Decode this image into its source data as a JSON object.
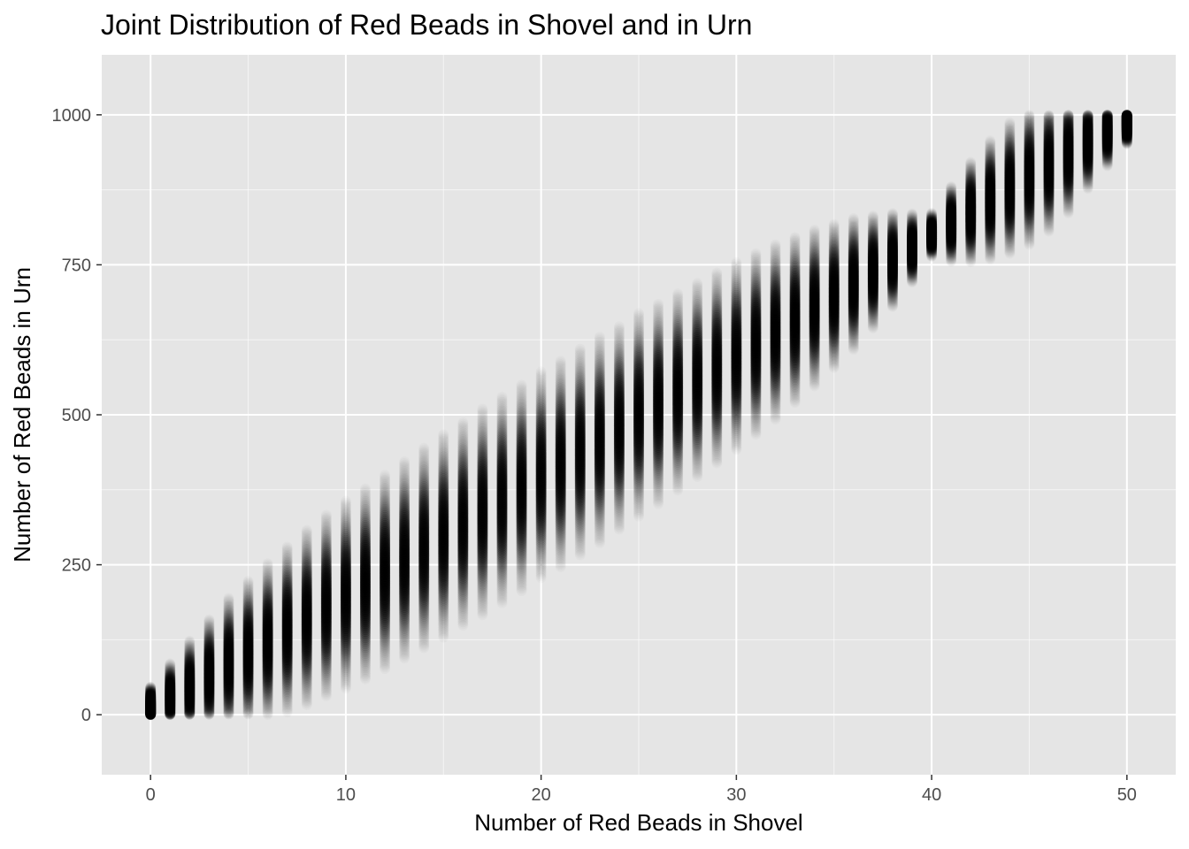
{
  "chart_data": {
    "type": "scatter",
    "title": "Joint Distribution of Red Beads in Shovel and in Urn",
    "xlabel": "Number of Red Beads in Shovel",
    "ylabel": "Number of Red Beads in Urn",
    "xlim": [
      -2.5,
      52.5
    ],
    "ylim": [
      -100,
      1100
    ],
    "x_ticks": [
      0,
      10,
      20,
      30,
      40,
      50
    ],
    "y_ticks": [
      0,
      250,
      500,
      750,
      1000
    ],
    "x_tick_labels": [
      "0",
      "10",
      "20",
      "30",
      "40",
      "50"
    ],
    "y_tick_labels": [
      "0",
      "250",
      "500",
      "750",
      "1000"
    ],
    "grid": true,
    "legend": "none",
    "point_color": "#000000",
    "panel_background": "#e5e5e5",
    "grid_color": "#ffffff",
    "x": [
      0,
      1,
      2,
      3,
      4,
      5,
      6,
      7,
      8,
      9,
      10,
      11,
      12,
      13,
      14,
      15,
      16,
      17,
      18,
      19,
      20,
      21,
      22,
      23,
      24,
      25,
      26,
      27,
      28,
      29,
      30,
      31,
      32,
      33,
      34,
      35,
      36,
      37,
      38,
      39,
      40,
      41,
      42,
      43,
      44,
      45,
      46,
      47,
      48,
      49,
      50
    ],
    "y_center": [
      10,
      28,
      45,
      65,
      85,
      103,
      122,
      142,
      162,
      182,
      200,
      218,
      238,
      258,
      278,
      298,
      318,
      338,
      358,
      378,
      400,
      418,
      438,
      458,
      478,
      500,
      518,
      538,
      558,
      578,
      598,
      618,
      638,
      658,
      678,
      698,
      718,
      738,
      758,
      778,
      800,
      818,
      838,
      858,
      878,
      898,
      915,
      935,
      955,
      972,
      988
    ],
    "y_spread": [
      14,
      22,
      30,
      36,
      42,
      46,
      50,
      53,
      56,
      58,
      60,
      61,
      62,
      63,
      64,
      65,
      65,
      66,
      66,
      66,
      66,
      66,
      66,
      66,
      65,
      65,
      64,
      63,
      62,
      61,
      60,
      58,
      56,
      53,
      50,
      46,
      42,
      36,
      30,
      22,
      14,
      24,
      32,
      38,
      42,
      44,
      42,
      38,
      30,
      22,
      14
    ]
  }
}
